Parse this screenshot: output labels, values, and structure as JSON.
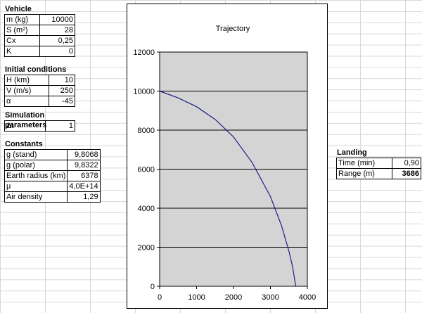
{
  "vehicle": {
    "title": "Vehicle",
    "rows": [
      {
        "label": "m (kg)",
        "value": "10000"
      },
      {
        "label": "S (m²)",
        "value": "28"
      },
      {
        "label": "Cx",
        "value": "0,25"
      },
      {
        "label": "K",
        "value": "0"
      }
    ]
  },
  "initial": {
    "title": "Initial conditions",
    "rows": [
      {
        "label": "H (km)",
        "value": "10"
      },
      {
        "label": "V (m/s)",
        "value": "250"
      },
      {
        "label": "α",
        "value": "-45"
      }
    ]
  },
  "simulation": {
    "title": "Simulation parameters",
    "rows": [
      {
        "label": "Δt",
        "value": "1"
      }
    ]
  },
  "constants": {
    "title": "Constants",
    "rows": [
      {
        "label": "g (stand)",
        "value": "9,8068"
      },
      {
        "label": "g (polar)",
        "value": "9,8322"
      },
      {
        "label": "Earth radius (km)",
        "value": "6378"
      },
      {
        "label": "μ",
        "value": "4,0E+14"
      },
      {
        "label": "Air density",
        "value": "1,29"
      }
    ]
  },
  "landing": {
    "title": "Landing",
    "rows": [
      {
        "label": "Time (min)",
        "value": "0,90"
      },
      {
        "label": "Range (m)",
        "value": "3686"
      }
    ]
  },
  "chart_data": {
    "type": "line",
    "title": "Trajectory",
    "xlim": [
      0,
      4000
    ],
    "ylim": [
      0,
      12000
    ],
    "xticks": [
      "0",
      "1000",
      "2000",
      "3000",
      "4000"
    ],
    "yticks": [
      "0",
      "2000",
      "4000",
      "6000",
      "8000",
      "10000",
      "12000"
    ],
    "grid": "horizontal",
    "series": [
      {
        "x": [
          0,
          500,
          1000,
          1500,
          2000,
          2500,
          3000,
          3300,
          3500,
          3600,
          3686
        ],
        "y": [
          10000,
          9650,
          9200,
          8550,
          7650,
          6350,
          4600,
          3100,
          1800,
          1000,
          0
        ],
        "color": "#1f1f8a"
      }
    ]
  }
}
